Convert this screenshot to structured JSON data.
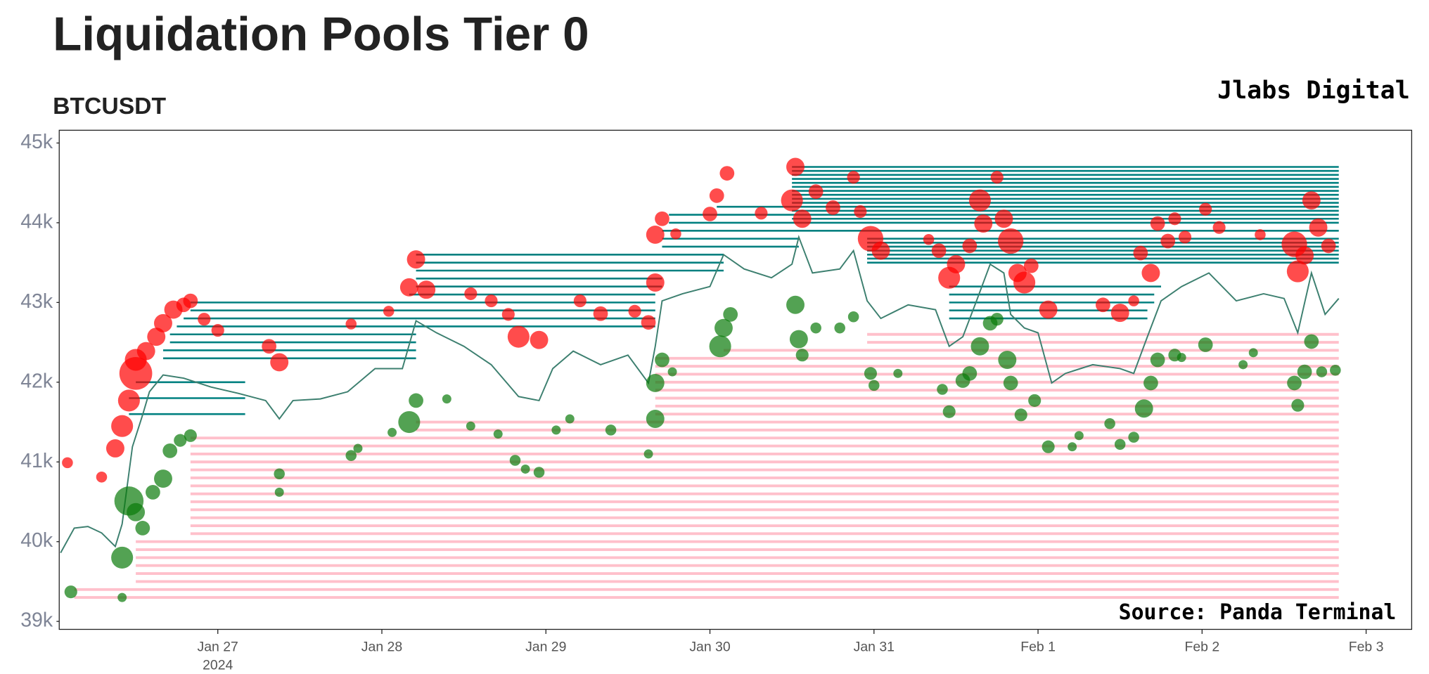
{
  "chart_data": {
    "type": "liquidation",
    "title": "Liquidation Pools Tier 0",
    "subtitle": "BTCUSDT",
    "brand": "Jlabs Digital",
    "source": "Source: Panda Terminal",
    "xlim": [
      "2024-01-26T00:48",
      "2024-02-03T06:40"
    ],
    "xticks": [
      {
        "value": "2024-01-27",
        "label": "Jan 27"
      },
      {
        "value": "2024-01-28",
        "label": "Jan 28"
      },
      {
        "value": "2024-01-29",
        "label": "Jan 29"
      },
      {
        "value": "2024-01-30",
        "label": "Jan 30"
      },
      {
        "value": "2024-01-31",
        "label": "Jan 31"
      },
      {
        "value": "2024-02-01",
        "label": "Feb 1"
      },
      {
        "value": "2024-02-02",
        "label": "Feb 2"
      },
      {
        "value": "2024-02-03",
        "label": "Feb 3"
      }
    ],
    "x_year": "2024",
    "ylim": [
      38900,
      45160
    ],
    "yticks": [
      {
        "value": 39000,
        "label": "39k"
      },
      {
        "value": 40000,
        "label": "40k"
      },
      {
        "value": 41000,
        "label": "41k"
      },
      {
        "value": 42000,
        "label": "42k"
      },
      {
        "value": 43000,
        "label": "43k"
      },
      {
        "value": 44000,
        "label": "44k"
      },
      {
        "value": 45000,
        "label": "45k"
      }
    ],
    "price": {
      "color": "#3c7f6f",
      "x": [
        "2024-01-26T01:00",
        "2024-01-26T03:00",
        "2024-01-26T05:00",
        "2024-01-26T07:00",
        "2024-01-26T09:00",
        "2024-01-26T10:00",
        "2024-01-26T11:30",
        "2024-01-26T13:00",
        "2024-01-26T14:00",
        "2024-01-26T16:00",
        "2024-01-26T19:00",
        "2024-01-26T23:00",
        "2024-01-27T03:00",
        "2024-01-27T07:00",
        "2024-01-27T09:00",
        "2024-01-27T11:00",
        "2024-01-27T15:00",
        "2024-01-27T19:00",
        "2024-01-27T23:00",
        "2024-01-28T03:00",
        "2024-01-28T05:00",
        "2024-01-28T08:00",
        "2024-01-28T12:00",
        "2024-01-28T16:00",
        "2024-01-28T20:00",
        "2024-01-28T23:00",
        "2024-01-29T01:00",
        "2024-01-29T04:00",
        "2024-01-29T08:00",
        "2024-01-29T12:00",
        "2024-01-29T15:00",
        "2024-01-29T16:00",
        "2024-01-29T17:00",
        "2024-01-29T20:00",
        "2024-01-30T00:00",
        "2024-01-30T02:00",
        "2024-01-30T05:00",
        "2024-01-30T09:00",
        "2024-01-30T12:00",
        "2024-01-30T13:00",
        "2024-01-30T15:00",
        "2024-01-30T19:00",
        "2024-01-30T21:00",
        "2024-01-30T23:00",
        "2024-01-31T01:00",
        "2024-01-31T05:00",
        "2024-01-31T09:00",
        "2024-01-31T11:00",
        "2024-01-31T13:00",
        "2024-01-31T15:00",
        "2024-01-31T17:00",
        "2024-01-31T19:00",
        "2024-01-31T20:00",
        "2024-01-31T22:00",
        "2024-02-01T00:00",
        "2024-02-01T02:00",
        "2024-02-01T04:00",
        "2024-02-01T08:00",
        "2024-02-01T12:00",
        "2024-02-01T14:00",
        "2024-02-01T16:00",
        "2024-02-01T18:00",
        "2024-02-01T21:00",
        "2024-02-02T01:00",
        "2024-02-02T05:00",
        "2024-02-02T09:00",
        "2024-02-02T12:00",
        "2024-02-02T14:00",
        "2024-02-02T16:00",
        "2024-02-02T18:00",
        "2024-02-02T20:00"
      ],
      "values": [
        39860,
        40170,
        40190,
        40110,
        39940,
        40220,
        41190,
        41590,
        41880,
        42090,
        42050,
        41940,
        41860,
        41770,
        41540,
        41770,
        41790,
        41880,
        42170,
        42170,
        42770,
        42620,
        42450,
        42220,
        41820,
        41770,
        42170,
        42390,
        42220,
        42340,
        41990,
        42450,
        43020,
        43110,
        43200,
        43600,
        43420,
        43310,
        43480,
        43820,
        43370,
        43420,
        43650,
        43020,
        42800,
        42970,
        42910,
        42450,
        42570,
        43020,
        43480,
        43370,
        42850,
        42680,
        42620,
        41990,
        42110,
        42220,
        42170,
        42110,
        42570,
        43020,
        43200,
        43370,
        43020,
        43110,
        43050,
        42620,
        43370,
        42850,
        43050
      ]
    },
    "short_liquidations": {
      "color": "#ff0000",
      "x": [
        "2024-01-26T02:00",
        "2024-01-26T07:00",
        "2024-01-26T09:00",
        "2024-01-26T10:00",
        "2024-01-26T11:00",
        "2024-01-26T12:00",
        "2024-01-26T12:00",
        "2024-01-26T13:30",
        "2024-01-26T15:00",
        "2024-01-26T16:00",
        "2024-01-26T17:30",
        "2024-01-26T19:00",
        "2024-01-26T20:00",
        "2024-01-26T22:00",
        "2024-01-27T00:00",
        "2024-01-27T07:30",
        "2024-01-27T09:00",
        "2024-01-27T19:30",
        "2024-01-28T01:00",
        "2024-01-28T04:00",
        "2024-01-28T05:00",
        "2024-01-28T06:30",
        "2024-01-28T13:00",
        "2024-01-28T16:00",
        "2024-01-28T18:30",
        "2024-01-28T20:00",
        "2024-01-28T23:00",
        "2024-01-29T05:00",
        "2024-01-29T08:00",
        "2024-01-29T13:00",
        "2024-01-29T15:00",
        "2024-01-29T16:00",
        "2024-01-29T16:00",
        "2024-01-29T17:00",
        "2024-01-29T19:00",
        "2024-01-30T00:00",
        "2024-01-30T01:00",
        "2024-01-30T02:30",
        "2024-01-30T07:30",
        "2024-01-30T12:30",
        "2024-01-30T12:00",
        "2024-01-30T13:30",
        "2024-01-30T15:30",
        "2024-01-30T18:00",
        "2024-01-30T21:00",
        "2024-01-30T22:00",
        "2024-01-30T23:30",
        "2024-01-31T01:00",
        "2024-01-31T08:00",
        "2024-01-31T09:30",
        "2024-01-31T11:00",
        "2024-01-31T12:00",
        "2024-01-31T14:00",
        "2024-01-31T15:30",
        "2024-01-31T16:00",
        "2024-01-31T18:00",
        "2024-01-31T19:00",
        "2024-01-31T20:00",
        "2024-01-31T21:00",
        "2024-01-31T22:00",
        "2024-01-31T23:00",
        "2024-02-01T01:30",
        "2024-02-01T09:30",
        "2024-02-01T12:00",
        "2024-02-01T14:00",
        "2024-02-01T15:00",
        "2024-02-01T16:30",
        "2024-02-01T17:30",
        "2024-02-01T19:00",
        "2024-02-01T20:00",
        "2024-02-01T21:30",
        "2024-02-02T00:30",
        "2024-02-02T02:30",
        "2024-02-02T08:30",
        "2024-02-02T13:30",
        "2024-02-02T14:00",
        "2024-02-02T15:00",
        "2024-02-02T16:00",
        "2024-02-02T17:00",
        "2024-02-02T18:30"
      ],
      "values": [
        40990,
        40810,
        41170,
        41450,
        41770,
        42110,
        42280,
        42390,
        42570,
        42740,
        42910,
        42970,
        43020,
        42790,
        42650,
        42450,
        42250,
        42730,
        42890,
        43190,
        43540,
        43160,
        43110,
        43020,
        42850,
        42570,
        42530,
        43020,
        42860,
        42890,
        42750,
        43250,
        43850,
        44050,
        43860,
        44110,
        44340,
        44620,
        44120,
        44700,
        44280,
        44050,
        44390,
        44190,
        44570,
        44140,
        43800,
        43650,
        43790,
        43650,
        43310,
        43480,
        43710,
        44280,
        43990,
        44570,
        44050,
        43770,
        43370,
        43250,
        43460,
        42910,
        42970,
        42870,
        43020,
        43620,
        43370,
        43990,
        43770,
        44050,
        43820,
        44170,
        43940,
        43850,
        43730,
        43390,
        43590,
        44280,
        43940,
        43710
      ],
      "sizes": [
        6,
        6,
        10,
        12,
        12,
        18,
        12,
        10,
        10,
        10,
        10,
        8,
        8,
        7,
        7,
        8,
        10,
        6,
        6,
        10,
        10,
        10,
        7,
        7,
        7,
        12,
        10,
        7,
        8,
        7,
        8,
        10,
        10,
        8,
        6,
        8,
        8,
        8,
        7,
        10,
        12,
        10,
        8,
        8,
        7,
        7,
        14,
        10,
        6,
        8,
        12,
        10,
        8,
        12,
        10,
        7,
        10,
        14,
        10,
        12,
        8,
        10,
        8,
        10,
        6,
        8,
        10,
        8,
        8,
        7,
        7,
        7,
        7,
        6,
        14,
        12,
        10,
        10,
        10,
        8
      ]
    },
    "long_liquidations": {
      "color": "#0a7a0a",
      "x": [
        "2024-01-26T02:30",
        "2024-01-26T10:00",
        "2024-01-26T10:00",
        "2024-01-26T11:00",
        "2024-01-26T12:00",
        "2024-01-26T13:00",
        "2024-01-26T14:30",
        "2024-01-26T16:00",
        "2024-01-26T17:00",
        "2024-01-26T18:30",
        "2024-01-26T20:00",
        "2024-01-27T09:00",
        "2024-01-27T09:00",
        "2024-01-27T19:30",
        "2024-01-27T20:30",
        "2024-01-28T01:30",
        "2024-01-28T04:00",
        "2024-01-28T05:00",
        "2024-01-28T09:30",
        "2024-01-28T13:00",
        "2024-01-28T17:00",
        "2024-01-28T19:30",
        "2024-01-28T21:00",
        "2024-01-28T23:00",
        "2024-01-29T01:30",
        "2024-01-29T03:30",
        "2024-01-29T09:30",
        "2024-01-29T15:00",
        "2024-01-29T16:00",
        "2024-01-29T16:00",
        "2024-01-29T17:00",
        "2024-01-29T18:30",
        "2024-01-30T01:30",
        "2024-01-30T02:00",
        "2024-01-30T03:00",
        "2024-01-30T12:30",
        "2024-01-30T13:00",
        "2024-01-30T13:30",
        "2024-01-30T15:30",
        "2024-01-30T19:00",
        "2024-01-30T21:00",
        "2024-01-30T23:30",
        "2024-01-31T00:00",
        "2024-01-31T03:30",
        "2024-01-31T10:00",
        "2024-01-31T11:00",
        "2024-01-31T13:00",
        "2024-01-31T14:00",
        "2024-01-31T15:30",
        "2024-01-31T17:00",
        "2024-01-31T18:00",
        "2024-01-31T19:30",
        "2024-01-31T20:00",
        "2024-01-31T21:30",
        "2024-01-31T23:30",
        "2024-02-01T01:30",
        "2024-02-01T05:00",
        "2024-02-01T06:00",
        "2024-02-01T10:30",
        "2024-02-01T12:00",
        "2024-02-01T14:00",
        "2024-02-01T15:30",
        "2024-02-01T16:30",
        "2024-02-01T17:30",
        "2024-02-01T20:00",
        "2024-02-01T21:00",
        "2024-02-02T00:30",
        "2024-02-02T06:00",
        "2024-02-02T07:30",
        "2024-02-02T13:30",
        "2024-02-02T14:00",
        "2024-02-02T15:00",
        "2024-02-02T16:00",
        "2024-02-02T17:30",
        "2024-02-02T19:30"
      ],
      "values": [
        39370,
        39300,
        39800,
        40510,
        40370,
        40170,
        40620,
        40790,
        41140,
        41270,
        41330,
        40850,
        40620,
        41080,
        41170,
        41370,
        41500,
        41770,
        41790,
        41450,
        41350,
        41020,
        40910,
        40870,
        41400,
        41540,
        41400,
        41100,
        41540,
        41990,
        42280,
        42130,
        42450,
        42680,
        42850,
        42970,
        42540,
        42340,
        42680,
        42680,
        42820,
        42110,
        41960,
        42110,
        41910,
        41630,
        42020,
        42110,
        42450,
        42740,
        42790,
        42280,
        41990,
        41590,
        41770,
        41190,
        41190,
        41330,
        41480,
        41220,
        41310,
        41670,
        41990,
        42280,
        42340,
        42310,
        42470,
        42220,
        42370,
        41990,
        41710,
        42130,
        42510,
        42130,
        42150
      ],
      "sizes": [
        7,
        5,
        12,
        16,
        10,
        8,
        8,
        10,
        8,
        7,
        7,
        6,
        5,
        6,
        5,
        5,
        12,
        8,
        5,
        5,
        5,
        6,
        5,
        6,
        5,
        5,
        6,
        5,
        10,
        10,
        8,
        5,
        12,
        10,
        8,
        10,
        10,
        7,
        6,
        6,
        6,
        7,
        6,
        5,
        6,
        7,
        8,
        8,
        10,
        8,
        7,
        10,
        8,
        7,
        7,
        7,
        5,
        5,
        6,
        6,
        6,
        10,
        8,
        8,
        7,
        5,
        8,
        5,
        5,
        8,
        7,
        8,
        8,
        6,
        6
      ]
    },
    "short_pools": {
      "color": "#008080",
      "start": [
        "2024-01-26T11:00",
        "2024-01-26T11:00",
        "2024-01-26T12:00",
        "2024-01-26T16:00",
        "2024-01-26T16:00",
        "2024-01-26T17:00",
        "2024-01-26T17:00",
        "2024-01-26T18:00",
        "2024-01-26T19:00",
        "2024-01-26T20:00",
        "2024-01-26T20:00",
        "2024-01-28T04:00",
        "2024-01-28T05:00",
        "2024-01-28T05:00",
        "2024-01-28T05:00",
        "2024-01-28T05:00",
        "2024-01-28T05:00",
        "2024-01-29T17:00",
        "2024-01-29T17:00",
        "2024-01-29T17:00",
        "2024-01-29T18:00",
        "2024-01-29T18:00",
        "2024-01-30T01:00",
        "2024-01-30T12:00",
        "2024-01-30T12:00",
        "2024-01-30T12:00",
        "2024-01-30T12:00",
        "2024-01-30T12:00",
        "2024-01-30T23:00",
        "2024-01-30T23:00",
        "2024-01-30T23:00",
        "2024-01-30T23:00",
        "2024-01-31T11:00",
        "2024-01-31T11:00",
        "2024-01-31T11:00",
        "2024-01-31T11:00",
        "2024-01-31T11:00",
        "2024-01-30T12:00",
        "2024-01-30T12:00",
        "2024-01-30T12:00",
        "2024-01-30T12:00",
        "2024-01-30T12:00",
        "2024-01-30T12:00",
        "2024-01-30T12:00",
        "2024-01-30T23:00",
        "2024-01-30T23:00",
        "2024-01-30T23:00"
      ],
      "end": [
        "2024-01-27T04:00",
        "2024-01-27T04:00",
        "2024-01-27T04:00",
        "2024-01-28T05:00",
        "2024-01-28T05:00",
        "2024-01-28T05:00",
        "2024-01-28T05:00",
        "2024-01-29T16:00",
        "2024-01-29T16:00",
        "2024-01-29T16:00",
        "2024-01-29T16:00",
        "2024-01-29T16:00",
        "2024-01-29T17:00",
        "2024-01-29T17:00",
        "2024-01-30T02:00",
        "2024-01-30T02:00",
        "2024-01-30T02:00",
        "2024-01-30T13:00",
        "2024-01-30T13:00",
        "2024-02-02T20:00",
        "2024-02-02T20:00",
        "2024-02-02T20:00",
        "2024-02-02T20:00",
        "2024-02-02T20:00",
        "2024-02-02T20:00",
        "2024-02-02T20:00",
        "2024-02-02T20:00",
        "2024-02-02T20:00",
        "2024-02-02T20:00",
        "2024-02-02T20:00",
        "2024-02-02T20:00",
        "2024-02-02T20:00",
        "2024-02-01T16:00",
        "2024-02-01T16:00",
        "2024-02-01T17:00",
        "2024-02-01T17:00",
        "2024-02-01T18:00",
        "2024-02-02T20:00",
        "2024-02-02T20:00",
        "2024-02-02T20:00",
        "2024-02-02T20:00",
        "2024-02-02T20:00",
        "2024-02-02T20:00",
        "2024-02-02T20:00",
        "2024-02-02T20:00",
        "2024-02-02T20:00",
        "2024-02-02T20:00"
      ],
      "values": [
        41600,
        41800,
        42000,
        42300,
        42400,
        42500,
        42600,
        42700,
        42800,
        42900,
        43000,
        43100,
        43200,
        43300,
        43400,
        43500,
        43600,
        43700,
        43800,
        43900,
        44000,
        44100,
        44200,
        44300,
        44400,
        44500,
        44600,
        44700,
        43500,
        43600,
        43700,
        43800,
        42800,
        42900,
        43000,
        43100,
        43200,
        44050,
        44150,
        44250,
        44350,
        44450,
        44550,
        44650,
        43550,
        43650,
        43750
      ]
    },
    "long_pools": {
      "color": "#ffc0cb",
      "start": [
        "2024-01-26T03:00",
        "2024-01-26T03:00",
        "2024-01-26T12:00",
        "2024-01-26T12:00",
        "2024-01-26T12:00",
        "2024-01-26T12:00",
        "2024-01-26T12:00",
        "2024-01-26T12:00",
        "2024-01-26T20:00",
        "2024-01-26T20:00",
        "2024-01-26T20:00",
        "2024-01-26T20:00",
        "2024-01-26T20:00",
        "2024-01-26T20:00",
        "2024-01-26T20:00",
        "2024-01-26T20:00",
        "2024-01-26T20:00",
        "2024-01-26T20:00",
        "2024-01-26T20:00",
        "2024-01-26T20:00",
        "2024-01-26T20:00",
        "2024-01-28T05:00",
        "2024-01-28T05:00",
        "2024-01-29T16:00",
        "2024-01-29T16:00",
        "2024-01-29T16:00",
        "2024-01-29T16:00",
        "2024-01-29T16:00",
        "2024-01-29T16:00",
        "2024-01-29T16:00",
        "2024-01-29T16:00",
        "2024-01-30T02:00",
        "2024-01-30T23:00",
        "2024-01-30T23:00"
      ],
      "end": [
        "2024-02-02T20:00",
        "2024-02-02T20:00",
        "2024-02-02T20:00",
        "2024-02-02T20:00",
        "2024-02-02T20:00",
        "2024-02-02T20:00",
        "2024-02-02T20:00",
        "2024-02-02T20:00",
        "2024-02-02T20:00",
        "2024-02-02T20:00",
        "2024-02-02T20:00",
        "2024-02-02T20:00",
        "2024-02-02T20:00",
        "2024-02-02T20:00",
        "2024-02-02T20:00",
        "2024-02-02T20:00",
        "2024-02-02T20:00",
        "2024-02-02T20:00",
        "2024-02-02T20:00",
        "2024-02-02T20:00",
        "2024-02-02T20:00",
        "2024-02-02T20:00",
        "2024-02-02T20:00",
        "2024-02-02T20:00",
        "2024-02-02T20:00",
        "2024-02-02T20:00",
        "2024-02-02T20:00",
        "2024-02-02T20:00",
        "2024-02-02T20:00",
        "2024-02-02T20:00",
        "2024-02-02T20:00",
        "2024-02-02T20:00",
        "2024-02-02T20:00",
        "2024-02-02T20:00"
      ],
      "values": [
        39300,
        39400,
        39500,
        39600,
        39700,
        39800,
        39900,
        40000,
        40100,
        40200,
        40300,
        40400,
        40500,
        40600,
        40700,
        40800,
        40900,
        41000,
        41100,
        41200,
        41300,
        41400,
        41500,
        41600,
        41700,
        41800,
        41900,
        42000,
        42100,
        42200,
        42300,
        42400,
        42500,
        42600
      ]
    }
  }
}
